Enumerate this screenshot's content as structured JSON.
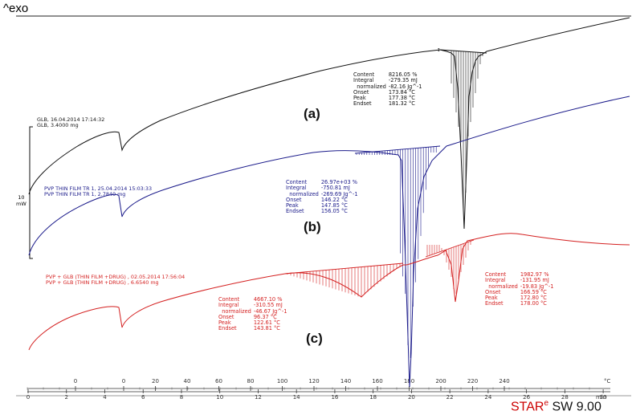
{
  "header": {
    "exo_label": "^exo"
  },
  "footer": {
    "software_prefix": "STAR",
    "software_sup": "e",
    "software_suffix": " SW 9.00"
  },
  "scale": {
    "value": "10",
    "unit": "mW"
  },
  "colors": {
    "a": "#111111",
    "b": "#1a1a8a",
    "c": "#d42020"
  },
  "chart_data": {
    "type": "line",
    "title": "",
    "xlabel": "min",
    "ylabel": "^exo",
    "temperature_axis": {
      "unit": "°C",
      "ticks": [
        "0",
        "0",
        "20",
        "40",
        "60",
        "80",
        "100",
        "120",
        "140",
        "160",
        "180",
        "200",
        "220",
        "240"
      ]
    },
    "time_axis": {
      "unit": "min",
      "ticks": [
        "0",
        "2",
        "4",
        "6",
        "8",
        "10",
        "12",
        "14",
        "16",
        "18",
        "20",
        "22",
        "24",
        "26",
        "28",
        "30"
      ]
    },
    "series": [
      {
        "name": "(a)",
        "sample": [
          "GLB, 16.04.2014 17:14:32",
          "GLB, 3.4000 mg"
        ],
        "peak": {
          "Content": "8216.05 %",
          "Integral": "-279.35 mJ",
          "normalized": "-82.16 Jg^-1",
          "Onset": "173.84 °C",
          "Peak": "177.38 °C",
          "Endset": "181.32 °C"
        }
      },
      {
        "name": "(b)",
        "sample": [
          "PVP THIN FILM TR 1, 25.04.2014 15:03:33",
          "PVP THIN FILM TR 1, 2.7840 mg"
        ],
        "peak": {
          "Content": "26.97e+03 %",
          "Integral": "-750.81 mJ",
          "normalized": "-269.69 Jg^-1",
          "Onset": "146.22 °C",
          "Peak": "147.85 °C",
          "Endset": "156.05 °C"
        }
      },
      {
        "name": "(c)",
        "sample": [
          "PVP + GLB (THIN FILM +DRUG) , 02.05.2014 17:56:04",
          "PVP + GLB (THIN FILM +DRUG) , 6.6540 mg"
        ],
        "peaks": [
          {
            "Content": "4667.10 %",
            "Integral": "-310.55 mJ",
            "normalized": "-46.67 Jg^-1",
            "Onset": "96.37 °C",
            "Peak": "122.61 °C",
            "Endset": "143.81 °C"
          },
          {
            "Content": "1982.97 %",
            "Integral": "-131.95 mJ",
            "normalized": "-19.83 Jg^-1",
            "Onset": "166.59 °C",
            "Peak": "172.80 °C",
            "Endset": "178.00 °C"
          }
        ]
      }
    ]
  }
}
